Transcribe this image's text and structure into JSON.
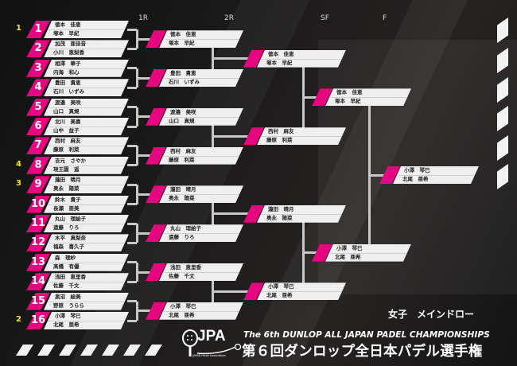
{
  "rounds_headers": [
    "1R",
    "2R",
    "SF",
    "F"
  ],
  "seeds": [
    {
      "draw": 1,
      "seed": "1"
    },
    {
      "draw": 8,
      "seed": "4"
    },
    {
      "draw": 9,
      "seed": "3"
    },
    {
      "draw": 16,
      "seed": "2"
    }
  ],
  "draw": [
    {
      "no": "1",
      "p1": "徳本　佳恵",
      "p2": "塚本　早紀"
    },
    {
      "no": "2",
      "p1": "加茂　亜佳音",
      "p2": "小川　恵梨香"
    },
    {
      "no": "3",
      "p1": "相澤　華子",
      "p2": "内海　和心"
    },
    {
      "no": "4",
      "p1": "豊田　貴恵",
      "p2": "石川　いずみ"
    },
    {
      "no": "5",
      "p1": "渡邉　美咲",
      "p2": "山口　真規"
    },
    {
      "no": "6",
      "p1": "北川　美喜",
      "p2": "山中　益子"
    },
    {
      "no": "7",
      "p1": "西村　麻友",
      "p2": "藤原　利菜"
    },
    {
      "no": "8",
      "p1": "吉元　さやか",
      "p2": "現王園　遥"
    },
    {
      "no": "9",
      "p1": "瀧田　晴月",
      "p2": "奥永　陽菜"
    },
    {
      "no": "10",
      "p1": "鈴木　貴子",
      "p2": "長瀬　亜美"
    },
    {
      "no": "11",
      "p1": "丸山　理絵子",
      "p2": "遠藤　りろ"
    },
    {
      "no": "12",
      "p1": "木平　真梨奈",
      "p2": "福森　喜久子"
    },
    {
      "no": "13",
      "p1": "森　理紗",
      "p2": "髙橋　有優"
    },
    {
      "no": "14",
      "p1": "浅田　恵里香",
      "p2": "佐藤　千文"
    },
    {
      "no": "15",
      "p1": "黒沼　絵美",
      "p2": "野原　うらら"
    },
    {
      "no": "16",
      "p1": "小澤　琴巳",
      "p2": "北尾　亜希"
    }
  ],
  "results": {
    "r2": [
      {
        "p1": "徳本　佳恵",
        "p2": "塚本　早紀"
      },
      {
        "p1": "豊田　貴恵",
        "p2": "石川　いずみ"
      },
      {
        "p1": "渡邉　美咲",
        "p2": "山口　真規"
      },
      {
        "p1": "西村　麻友",
        "p2": "藤原　利菜"
      },
      {
        "p1": "瀧田　晴月",
        "p2": "奥永　陽菜"
      },
      {
        "p1": "丸山　理絵子",
        "p2": "遠藤　りろ"
      },
      {
        "p1": "浅田　恵里香",
        "p2": "佐藤　千文"
      },
      {
        "p1": "小澤　琴巳",
        "p2": "北尾　亜希"
      }
    ],
    "sf": [
      {
        "p1": "徳本　佳恵",
        "p2": "塚本　早紀"
      },
      {
        "p1": "西村　麻友",
        "p2": "藤原　利菜"
      },
      {
        "p1": "瀧田　晴月",
        "p2": "奥永　陽菜"
      },
      {
        "p1": "小澤　琴巳",
        "p2": "北尾　亜希"
      }
    ],
    "f": [
      {
        "p1": "徳本　佳恵",
        "p2": "塚本　早紀"
      },
      {
        "p1": "小澤　琴巳",
        "p2": "北尾　亜希"
      }
    ],
    "champion": [
      {
        "p1": "小澤　琴巳",
        "p2": "北尾　亜希"
      }
    ]
  },
  "event_title": "女子　メインドロー",
  "tournament_en": "The 6th DUNLOP ALL JAPAN PADEL CHAMPIONSHIPS",
  "tournament_jp": "第６回ダンロップ全日本パデル選手権",
  "logo": {
    "text": "JPA",
    "subtext": "JAPAN Padel Association"
  },
  "colors": {
    "accent": "#e6067f",
    "seed": "#f5e51b",
    "background": "#1a1a1a",
    "box": "#efefef"
  }
}
